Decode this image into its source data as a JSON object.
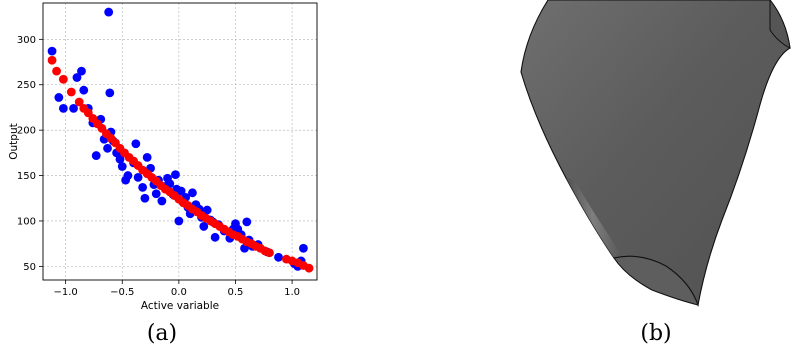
{
  "panels": {
    "a": {
      "caption": "(a)"
    },
    "b": {
      "caption": "(b)"
    }
  },
  "chart_data": {
    "type": "scatter",
    "xlabel": "Active variable",
    "ylabel": "Output",
    "xlim": [
      -1.2,
      1.22
    ],
    "ylim": [
      35,
      340
    ],
    "x_ticks": [
      -1.0,
      -0.5,
      0.0,
      0.5,
      1.0
    ],
    "x_tick_labels": [
      "−1.0",
      "−0.5",
      "0.0",
      "0.5",
      "1.0"
    ],
    "y_ticks": [
      50,
      100,
      150,
      200,
      250,
      300
    ],
    "y_tick_labels": [
      "50",
      "100",
      "150",
      "200",
      "250",
      "300"
    ],
    "grid": true,
    "series": [
      {
        "color": "#0000ff",
        "points": [
          [
            -1.12,
            287
          ],
          [
            -1.06,
            236
          ],
          [
            -1.02,
            224
          ],
          [
            -0.93,
            224
          ],
          [
            -0.9,
            258
          ],
          [
            -0.86,
            265
          ],
          [
            -0.84,
            244
          ],
          [
            -0.8,
            224
          ],
          [
            -0.76,
            208
          ],
          [
            -0.73,
            172
          ],
          [
            -0.72,
            208
          ],
          [
            -0.69,
            212
          ],
          [
            -0.66,
            190
          ],
          [
            -0.63,
            180
          ],
          [
            -0.62,
            330
          ],
          [
            -0.61,
            241
          ],
          [
            -0.6,
            198
          ],
          [
            -0.58,
            188
          ],
          [
            -0.55,
            175
          ],
          [
            -0.52,
            168
          ],
          [
            -0.5,
            160
          ],
          [
            -0.47,
            145
          ],
          [
            -0.45,
            150
          ],
          [
            -0.4,
            164
          ],
          [
            -0.38,
            185
          ],
          [
            -0.36,
            148
          ],
          [
            -0.32,
            137
          ],
          [
            -0.3,
            125
          ],
          [
            -0.28,
            170
          ],
          [
            -0.25,
            158
          ],
          [
            -0.22,
            140
          ],
          [
            -0.2,
            130
          ],
          [
            -0.18,
            145
          ],
          [
            -0.15,
            122
          ],
          [
            -0.12,
            138
          ],
          [
            -0.1,
            147
          ],
          [
            -0.08,
            141
          ],
          [
            -0.05,
            129
          ],
          [
            -0.03,
            151
          ],
          [
            -0.02,
            135
          ],
          [
            0.0,
            100
          ],
          [
            0.02,
            133
          ],
          [
            0.04,
            120
          ],
          [
            0.06,
            126
          ],
          [
            0.08,
            115
          ],
          [
            0.1,
            108
          ],
          [
            0.12,
            131
          ],
          [
            0.15,
            118
          ],
          [
            0.18,
            113
          ],
          [
            0.2,
            104
          ],
          [
            0.22,
            94
          ],
          [
            0.25,
            112
          ],
          [
            0.28,
            101
          ],
          [
            0.3,
            99
          ],
          [
            0.32,
            82
          ],
          [
            0.35,
            96
          ],
          [
            0.4,
            89
          ],
          [
            0.45,
            81
          ],
          [
            0.48,
            91
          ],
          [
            0.5,
            97
          ],
          [
            0.52,
            91
          ],
          [
            0.55,
            85
          ],
          [
            0.58,
            70
          ],
          [
            0.6,
            99
          ],
          [
            0.62,
            79
          ],
          [
            0.65,
            72
          ],
          [
            0.7,
            74
          ],
          [
            0.78,
            66
          ],
          [
            0.88,
            60
          ],
          [
            1.02,
            53
          ],
          [
            1.05,
            50
          ],
          [
            1.08,
            56
          ],
          [
            1.1,
            70
          ]
        ]
      },
      {
        "color": "#ff0000",
        "points": [
          [
            -1.12,
            277
          ],
          [
            -1.08,
            265
          ],
          [
            -1.02,
            256
          ],
          [
            -0.95,
            242
          ],
          [
            -0.88,
            231
          ],
          [
            -0.84,
            224
          ],
          [
            -0.8,
            219
          ],
          [
            -0.76,
            213
          ],
          [
            -0.72,
            207
          ],
          [
            -0.68,
            202
          ],
          [
            -0.64,
            196
          ],
          [
            -0.6,
            191
          ],
          [
            -0.56,
            186
          ],
          [
            -0.52,
            180
          ],
          [
            -0.48,
            175
          ],
          [
            -0.44,
            170
          ],
          [
            -0.4,
            166
          ],
          [
            -0.36,
            161
          ],
          [
            -0.32,
            156
          ],
          [
            -0.28,
            152
          ],
          [
            -0.24,
            148
          ],
          [
            -0.2,
            144
          ],
          [
            -0.16,
            139
          ],
          [
            -0.12,
            135
          ],
          [
            -0.08,
            132
          ],
          [
            -0.04,
            128
          ],
          [
            0.0,
            124
          ],
          [
            0.04,
            120
          ],
          [
            0.08,
            117
          ],
          [
            0.12,
            113
          ],
          [
            0.16,
            110
          ],
          [
            0.2,
            106
          ],
          [
            0.24,
            103
          ],
          [
            0.28,
            100
          ],
          [
            0.32,
            97
          ],
          [
            0.36,
            94
          ],
          [
            0.4,
            91
          ],
          [
            0.44,
            88
          ],
          [
            0.48,
            85
          ],
          [
            0.52,
            83
          ],
          [
            0.56,
            80
          ],
          [
            0.6,
            77
          ],
          [
            0.64,
            75
          ],
          [
            0.68,
            72
          ],
          [
            0.72,
            70
          ],
          [
            0.76,
            67
          ],
          [
            0.8,
            65
          ],
          [
            0.95,
            58
          ],
          [
            1.0,
            56
          ],
          [
            1.05,
            54
          ],
          [
            1.1,
            51
          ],
          [
            1.15,
            48
          ]
        ]
      }
    ]
  }
}
